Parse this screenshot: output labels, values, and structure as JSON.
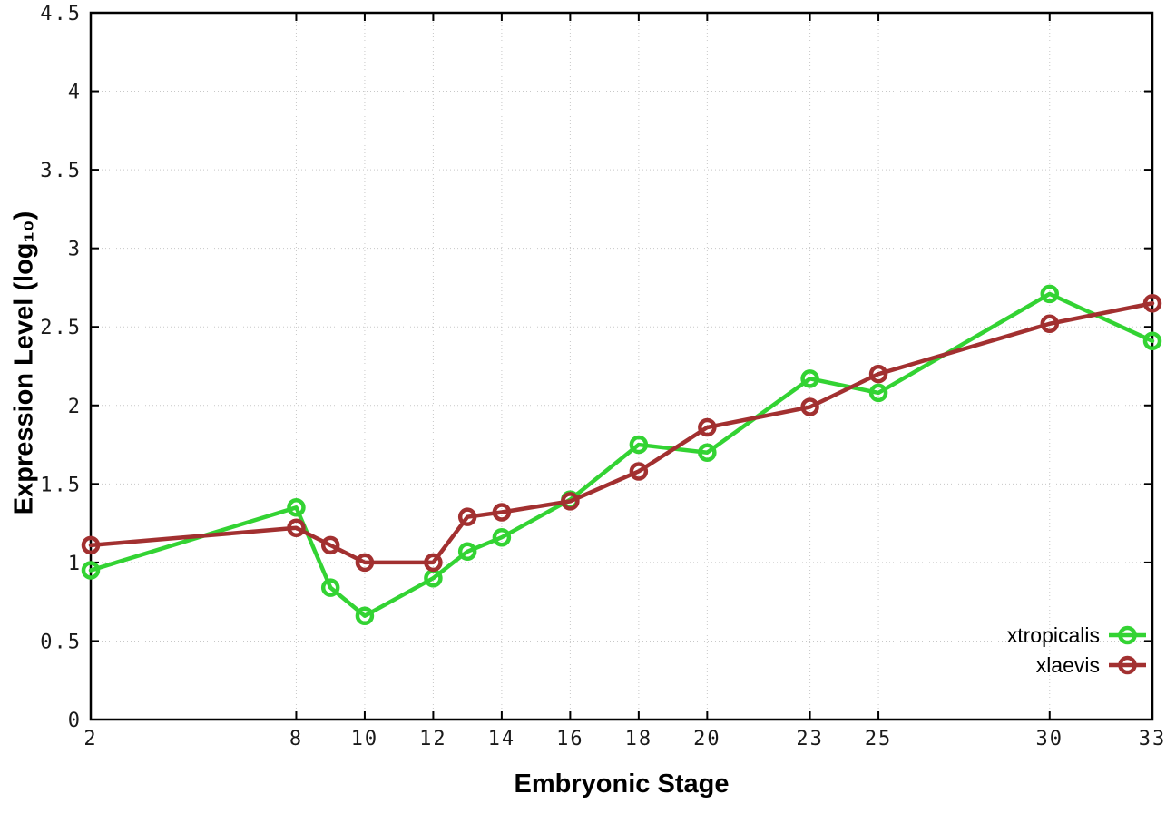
{
  "chart_data": {
    "type": "line",
    "title": "",
    "xlabel": "Embryonic Stage",
    "ylabel": "Expression Level (log₁₀)",
    "xlim": [
      2,
      33
    ],
    "ylim": [
      0,
      4.5
    ],
    "grid": true,
    "grid_style": "dotted",
    "legend_position": "bottom-right-inside",
    "x_ticks": [
      2,
      8,
      10,
      12,
      14,
      16,
      18,
      20,
      23,
      25,
      30,
      33
    ],
    "x_tick_labels": [
      "2",
      "8",
      "10",
      "12",
      "14",
      "16",
      "18",
      "20",
      "23",
      "25",
      "30",
      "33"
    ],
    "y_ticks": [
      0,
      0.5,
      1,
      1.5,
      2,
      2.5,
      3,
      3.5,
      4,
      4.5
    ],
    "y_tick_labels": [
      "0",
      "0.5",
      "1",
      "1.5",
      "2",
      "2.5",
      "3",
      "3.5",
      "4",
      "4.5"
    ],
    "x": [
      2,
      8,
      9,
      10,
      12,
      13,
      14,
      16,
      18,
      20,
      23,
      25,
      30,
      33
    ],
    "series": [
      {
        "name": "xtropicalis",
        "color": "#33d333",
        "marker": "open-circle",
        "values": [
          0.95,
          1.35,
          0.84,
          0.66,
          0.9,
          1.07,
          1.16,
          1.4,
          1.75,
          1.7,
          2.17,
          2.08,
          2.71,
          2.41
        ]
      },
      {
        "name": "xlaevis",
        "color": "#a23030",
        "marker": "open-circle",
        "values": [
          1.11,
          1.22,
          1.11,
          1.0,
          1.0,
          1.29,
          1.32,
          1.39,
          1.58,
          1.86,
          1.99,
          2.2,
          2.52,
          2.65
        ]
      }
    ],
    "colors": {
      "border": "#000000",
      "grid": "#c8c8c8",
      "tick_text": "#1a1a1a",
      "background": "#ffffff"
    }
  }
}
